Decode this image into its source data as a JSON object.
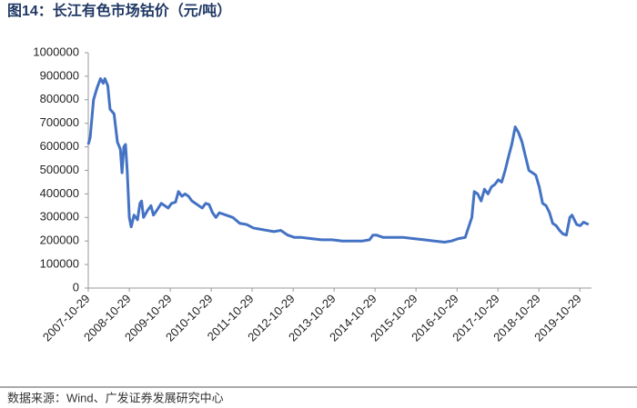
{
  "chart_data": {
    "type": "line",
    "title": "图14：长江有色市场钴价（元/吨）",
    "x": [
      "2007-10-29",
      "2007-11-15",
      "2007-12-15",
      "2008-01-15",
      "2008-02-15",
      "2008-03-10",
      "2008-03-25",
      "2008-04-20",
      "2008-05-10",
      "2008-06-15",
      "2008-07-15",
      "2008-08-10",
      "2008-08-25",
      "2008-09-10",
      "2008-09-25",
      "2008-10-10",
      "2008-10-29",
      "2008-11-15",
      "2008-12-10",
      "2009-01-10",
      "2009-02-01",
      "2009-02-15",
      "2009-03-05",
      "2009-04-10",
      "2009-05-10",
      "2009-06-01",
      "2009-07-01",
      "2009-08-10",
      "2009-09-10",
      "2009-10-10",
      "2009-11-10",
      "2009-12-15",
      "2010-01-10",
      "2010-02-10",
      "2010-03-10",
      "2010-04-10",
      "2010-05-10",
      "2010-06-10",
      "2010-08-10",
      "2010-09-10",
      "2010-10-10",
      "2010-11-10",
      "2010-12-10",
      "2011-01-10",
      "2011-03-10",
      "2011-05-10",
      "2011-07-10",
      "2011-09-10",
      "2011-11-10",
      "2012-01-10",
      "2012-03-10",
      "2012-05-10",
      "2012-07-10",
      "2012-09-10",
      "2012-11-10",
      "2013-01-10",
      "2013-04-10",
      "2013-07-10",
      "2013-10-10",
      "2014-01-10",
      "2014-04-10",
      "2014-07-10",
      "2014-09-10",
      "2014-10-10",
      "2014-11-10",
      "2015-01-10",
      "2015-04-10",
      "2015-07-10",
      "2015-10-10",
      "2016-01-10",
      "2016-04-10",
      "2016-07-10",
      "2016-09-10",
      "2016-11-10",
      "2017-01-10",
      "2017-02-10",
      "2017-03-10",
      "2017-04-01",
      "2017-05-01",
      "2017-06-01",
      "2017-07-01",
      "2017-08-01",
      "2017-09-01",
      "2017-10-01",
      "2017-11-01",
      "2017-12-01",
      "2018-01-01",
      "2018-02-01",
      "2018-03-01",
      "2018-04-01",
      "2018-05-01",
      "2018-06-01",
      "2018-07-01",
      "2018-08-01",
      "2018-09-01",
      "2018-10-01",
      "2018-11-01",
      "2018-12-01",
      "2019-01-01",
      "2019-02-01",
      "2019-03-01",
      "2019-04-01",
      "2019-05-01",
      "2019-06-01",
      "2019-07-01",
      "2019-08-01",
      "2019-08-20",
      "2019-09-10",
      "2019-10-01",
      "2019-11-01",
      "2019-12-01",
      "2020-01-15"
    ],
    "series": [
      {
        "color": "#4472c4",
        "values": [
          610000,
          640000,
          800000,
          850000,
          890000,
          870000,
          890000,
          860000,
          760000,
          740000,
          620000,
          590000,
          490000,
          600000,
          610000,
          500000,
          300000,
          260000,
          310000,
          290000,
          360000,
          370000,
          300000,
          330000,
          350000,
          310000,
          330000,
          360000,
          350000,
          340000,
          360000,
          365000,
          410000,
          390000,
          400000,
          390000,
          370000,
          360000,
          340000,
          360000,
          355000,
          320000,
          300000,
          320000,
          310000,
          300000,
          275000,
          270000,
          255000,
          250000,
          245000,
          240000,
          245000,
          225000,
          215000,
          215000,
          210000,
          205000,
          205000,
          200000,
          200000,
          200000,
          205000,
          225000,
          225000,
          215000,
          215000,
          215000,
          210000,
          205000,
          200000,
          195000,
          200000,
          210000,
          215000,
          260000,
          300000,
          410000,
          400000,
          370000,
          420000,
          400000,
          430000,
          440000,
          460000,
          450000,
          500000,
          560000,
          610000,
          685000,
          660000,
          620000,
          560000,
          500000,
          490000,
          480000,
          430000,
          360000,
          350000,
          320000,
          275000,
          265000,
          245000,
          230000,
          225000,
          300000,
          310000,
          290000,
          270000,
          265000,
          280000,
          270000
        ]
      }
    ],
    "xlim": [
      "2007-10-29",
      "2020-02-10"
    ],
    "xticks": [
      "2007-10-29",
      "2008-10-29",
      "2009-10-29",
      "2010-10-29",
      "2011-10-29",
      "2012-10-29",
      "2013-10-29",
      "2014-10-29",
      "2015-10-29",
      "2016-10-29",
      "2017-10-29",
      "2018-10-29",
      "2019-10-29"
    ],
    "ylim": [
      0,
      1000000
    ],
    "yticks": [
      0,
      100000,
      200000,
      300000,
      400000,
      500000,
      600000,
      700000,
      800000,
      900000,
      1000000
    ]
  },
  "source": "数据来源：Wind、广发证券发展研究中心"
}
